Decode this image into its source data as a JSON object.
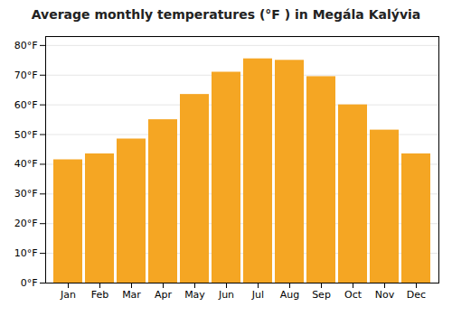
{
  "chart_data": {
    "type": "bar",
    "title": "Average monthly temperatures (°F ) in Megála Kalývia",
    "categories": [
      "Jan",
      "Feb",
      "Mar",
      "Apr",
      "May",
      "Jun",
      "Jul",
      "Aug",
      "Sep",
      "Oct",
      "Nov",
      "Dec"
    ],
    "values": [
      41.5,
      43.5,
      48.5,
      55.0,
      63.5,
      71.0,
      75.5,
      75.0,
      69.5,
      60.0,
      51.5,
      43.5
    ],
    "color": "#F5A623",
    "ylim": [
      0,
      83
    ],
    "yticks": [
      {
        "value": 0,
        "label": "0°F"
      },
      {
        "value": 10,
        "label": "10°F"
      },
      {
        "value": 20,
        "label": "20°F"
      },
      {
        "value": 30,
        "label": "30°F"
      },
      {
        "value": 40,
        "label": "40°F"
      },
      {
        "value": 50,
        "label": "50°F"
      },
      {
        "value": 60,
        "label": "60°F"
      },
      {
        "value": 70,
        "label": "70°F"
      },
      {
        "value": 80,
        "label": "80°F"
      }
    ],
    "grid": true
  }
}
